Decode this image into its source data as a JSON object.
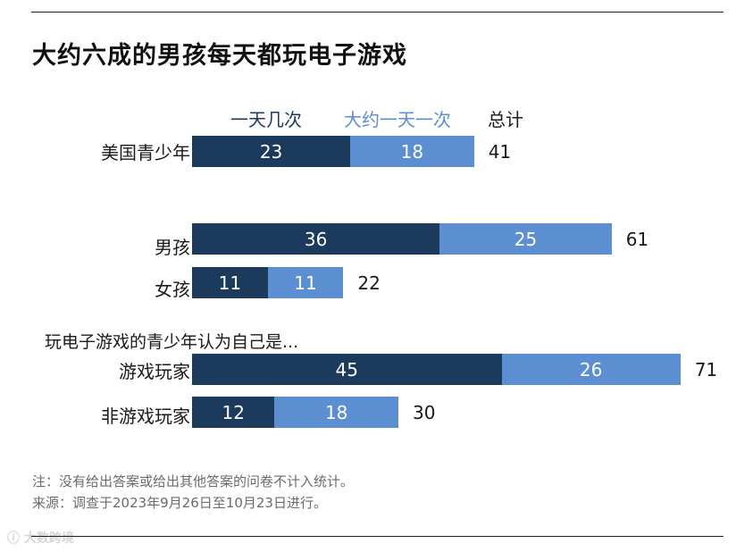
{
  "chart_data": {
    "type": "bar",
    "orientation": "horizontal",
    "stacked": true,
    "title": "大约六成的男孩每天都玩电子游戏",
    "total_label": "总计",
    "group_label": "玩电子游戏的青少年认为自己是...",
    "categories": [
      "美国青少年",
      "男孩",
      "女孩",
      "游戏玩家",
      "非游戏玩家"
    ],
    "series": [
      {
        "name": "一天几次",
        "values": [
          23,
          36,
          11,
          45,
          12
        ],
        "color": "#1b3a5c"
      },
      {
        "name": "大约一天一次",
        "values": [
          18,
          25,
          11,
          26,
          18
        ],
        "color": "#5b8fd2"
      }
    ],
    "totals": [
      41,
      61,
      22,
      71,
      30
    ],
    "notes": [
      "注：没有给出答案或给出其他答案的问卷不计入统计。",
      "来源：调查于2023年9月26日至10月23日进行。"
    ]
  },
  "watermark": "大数跨境"
}
